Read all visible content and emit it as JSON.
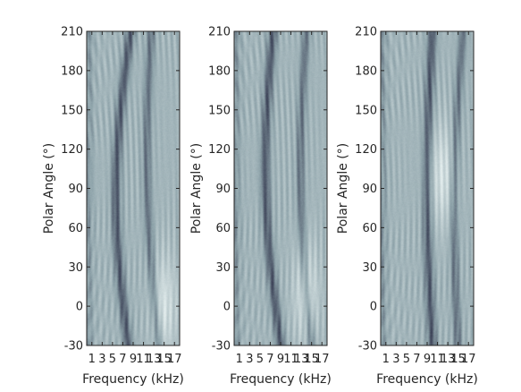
{
  "chart_data": [
    {
      "type": "heatmap",
      "title": "",
      "xlabel": "Frequency (kHz)",
      "ylabel": "Polar Angle (°)",
      "xticks": [
        "1",
        "3",
        "5",
        "7",
        "9",
        "11",
        "13",
        "15",
        "17"
      ],
      "yticks": [
        "-30",
        "0",
        "30",
        "60",
        "90",
        "120",
        "150",
        "180",
        "210"
      ],
      "xlim": [
        0,
        18
      ],
      "ylim": [
        -30,
        210
      ],
      "colormap": "bone",
      "colors": {
        "dark": "#2a2d45",
        "mid": "#8ea3aa",
        "light": "#e4eeee"
      },
      "features": {
        "notch_main": {
          "f_at_min": 8,
          "f_at_max": 8.5,
          "curvature": 2.6
        },
        "notch_secondary": {
          "f_at_min": 14,
          "f_at_max": 12.5,
          "curvature": 1.5
        },
        "bright_region": {
          "f": 15,
          "angle": 0
        }
      },
      "grid": false,
      "legend": false
    },
    {
      "type": "heatmap",
      "title": "",
      "xlabel": "Frequency (kHz)",
      "ylabel": "Polar Angle (°)",
      "xticks": [
        "1",
        "3",
        "5",
        "7",
        "9",
        "11",
        "13",
        "15",
        "17"
      ],
      "yticks": [
        "-30",
        "0",
        "30",
        "60",
        "90",
        "120",
        "150",
        "180",
        "210"
      ],
      "xlim": [
        0,
        18
      ],
      "ylim": [
        -30,
        210
      ],
      "colormap": "bone",
      "colors": {
        "dark": "#2a2d45",
        "mid": "#8ea3aa",
        "light": "#e4eeee"
      },
      "features": {
        "notch_main": {
          "f_at_min": 9,
          "f_at_max": 7.5,
          "curvature": 2.2
        },
        "notch_secondary": {
          "f_at_min": 15,
          "f_at_max": 14,
          "curvature": 1.6
        },
        "bright_region": {
          "f": 14,
          "angle": 10
        }
      },
      "grid": false,
      "legend": false
    },
    {
      "type": "heatmap",
      "title": "",
      "xlabel": "Frequency (kHz)",
      "ylabel": "Polar Angle (°)",
      "xticks": [
        "1",
        "3",
        "5",
        "7",
        "9",
        "11",
        "13",
        "15",
        "17"
      ],
      "yticks": [
        "-30",
        "0",
        "30",
        "60",
        "90",
        "120",
        "150",
        "180",
        "210"
      ],
      "xlim": [
        0,
        18
      ],
      "ylim": [
        -30,
        210
      ],
      "colormap": "bone",
      "colors": {
        "dark": "#2a2d45",
        "mid": "#8ea3aa",
        "light": "#e4eeee"
      },
      "features": {
        "notch_main": {
          "f_at_min": 10,
          "f_at_max": 10,
          "curvature": 1.0
        },
        "notch_secondary": {
          "f_at_min": 15,
          "f_at_max": 16,
          "curvature": 1.2
        },
        "bright_region": {
          "f": 12,
          "angle": 100
        }
      },
      "grid": false,
      "legend": false
    }
  ]
}
